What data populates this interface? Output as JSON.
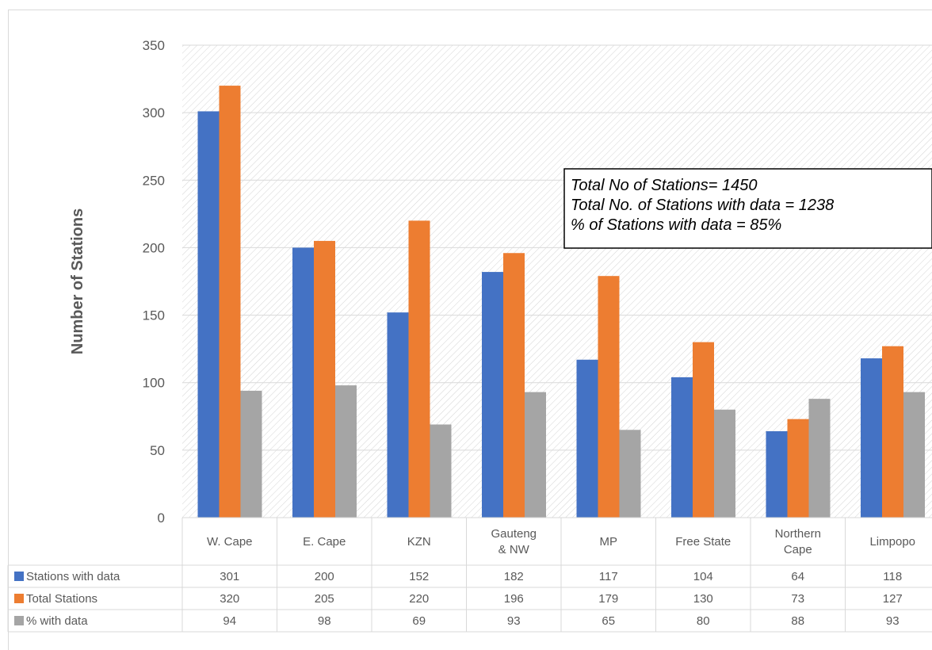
{
  "chart_data": {
    "type": "bar",
    "categories": [
      [
        "W. Cape"
      ],
      [
        "E. Cape"
      ],
      [
        "KZN"
      ],
      [
        "Gauteng",
        "& NW"
      ],
      [
        "MP"
      ],
      [
        "Free State"
      ],
      [
        "Northern",
        "Cape"
      ],
      [
        "Limpopo"
      ]
    ],
    "series": [
      {
        "name": "Stations with data",
        "color": "#4472c4",
        "values": [
          301,
          200,
          152,
          182,
          117,
          104,
          64,
          118
        ]
      },
      {
        "name": "Total Stations",
        "color": "#ed7d31",
        "values": [
          320,
          205,
          220,
          196,
          179,
          130,
          73,
          127
        ]
      },
      {
        "name": "% with data",
        "color": "#a5a5a5",
        "values": [
          94,
          98,
          69,
          93,
          65,
          80,
          88,
          93
        ]
      }
    ],
    "ylabel": "Number of Stations",
    "ylim": [
      0,
      350
    ],
    "yticks": [
      0,
      50,
      100,
      150,
      200,
      250,
      300,
      350
    ],
    "annotation": [
      "Total No of Stations= 1450",
      "Total No. of Stations with data = 1238",
      "% of Stations with data = 85%"
    ],
    "data_table": true,
    "background": "diagonal-hatch"
  }
}
